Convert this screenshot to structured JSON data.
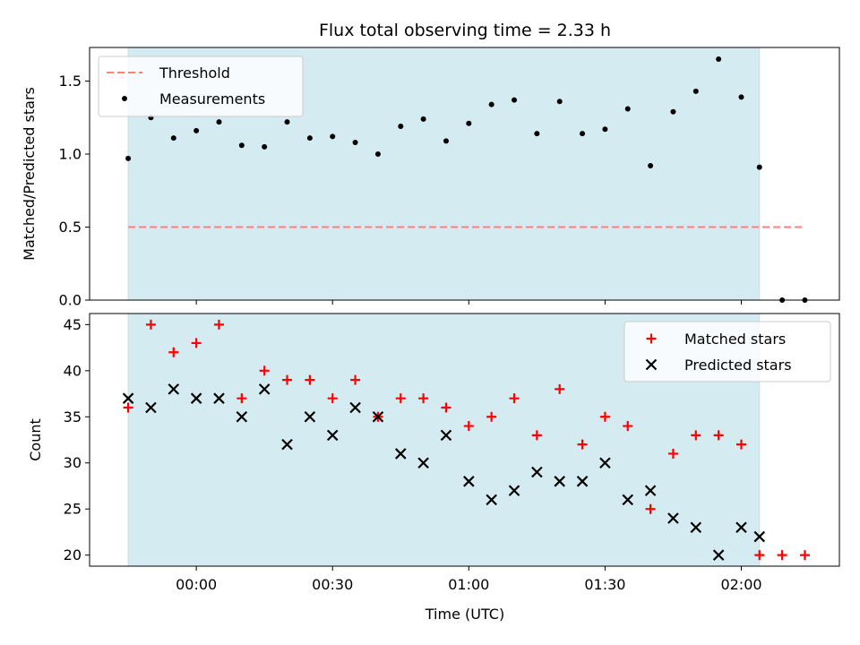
{
  "chart_data": [
    {
      "type": "scatter",
      "title": "Flux total observing time = 2.33 h",
      "xlabel": "",
      "ylabel": "Matched/Predicted stars",
      "ylim": [
        0,
        1.73
      ],
      "yticks": [
        "0.0",
        "0.5",
        "1.0",
        "1.5"
      ],
      "ytick_values": [
        0,
        0.5,
        1.0,
        1.5
      ],
      "shaded_span": [
        "23:45",
        "02:04"
      ],
      "legend_position": "top-left",
      "threshold": {
        "name": "Threshold",
        "y": 0.5,
        "x_start": "23:45",
        "x_end": "02:14",
        "color": "#ff7f7f"
      },
      "series": [
        {
          "name": "Measurements",
          "color": "#000000",
          "marker": "dot",
          "x": [
            "23:45",
            "23:50",
            "23:55",
            "00:00",
            "00:05",
            "00:10",
            "00:15",
            "00:20",
            "00:25",
            "00:30",
            "00:35",
            "00:40",
            "00:45",
            "00:50",
            "00:55",
            "01:00",
            "01:05",
            "01:10",
            "01:15",
            "01:20",
            "01:25",
            "01:30",
            "01:35",
            "01:40",
            "01:45",
            "01:50",
            "01:55",
            "02:00",
            "02:04",
            "02:09",
            "02:14"
          ],
          "y": [
            0.97,
            1.25,
            1.11,
            1.16,
            1.22,
            1.06,
            1.05,
            1.22,
            1.11,
            1.12,
            1.08,
            1.0,
            1.19,
            1.24,
            1.09,
            1.21,
            1.34,
            1.37,
            1.14,
            1.36,
            1.14,
            1.17,
            1.31,
            0.92,
            1.29,
            1.43,
            1.65,
            1.39,
            0.91,
            0.0,
            0.0
          ]
        }
      ]
    },
    {
      "type": "scatter",
      "title": "",
      "xlabel": "Time (UTC)",
      "ylabel": "Count",
      "ylim": [
        18.8,
        46.2
      ],
      "yticks": [
        "20",
        "25",
        "30",
        "35",
        "40",
        "45"
      ],
      "ytick_values": [
        20,
        25,
        30,
        35,
        40,
        45
      ],
      "xticks": [
        "00:00",
        "00:30",
        "01:00",
        "01:30",
        "02:00"
      ],
      "shaded_span": [
        "23:45",
        "02:04"
      ],
      "legend_position": "top-right",
      "series": [
        {
          "name": "Matched stars",
          "color": "#ff0000",
          "marker": "plus",
          "x": [
            "23:45",
            "23:50",
            "23:55",
            "00:00",
            "00:05",
            "00:10",
            "00:15",
            "00:20",
            "00:25",
            "00:30",
            "00:35",
            "00:40",
            "00:45",
            "00:50",
            "00:55",
            "01:00",
            "01:05",
            "01:10",
            "01:15",
            "01:20",
            "01:25",
            "01:30",
            "01:35",
            "01:40",
            "01:45",
            "01:50",
            "01:55",
            "02:00",
            "02:04",
            "02:09",
            "02:14"
          ],
          "y": [
            36,
            45,
            42,
            43,
            45,
            37,
            40,
            39,
            39,
            37,
            39,
            35,
            37,
            37,
            36,
            34,
            35,
            37,
            33,
            38,
            32,
            35,
            34,
            25,
            31,
            33,
            33,
            32,
            20,
            20,
            20
          ]
        },
        {
          "name": "Predicted stars",
          "color": "#000000",
          "marker": "x",
          "x": [
            "23:45",
            "23:50",
            "23:55",
            "00:00",
            "00:05",
            "00:10",
            "00:15",
            "00:20",
            "00:25",
            "00:30",
            "00:35",
            "00:40",
            "00:45",
            "00:50",
            "00:55",
            "01:00",
            "01:05",
            "01:10",
            "01:15",
            "01:20",
            "01:25",
            "01:30",
            "01:35",
            "01:40",
            "01:45",
            "01:50",
            "01:55",
            "02:00",
            "02:04"
          ],
          "y": [
            37,
            36,
            38,
            37,
            37,
            35,
            38,
            32,
            35,
            33,
            36,
            35,
            31,
            30,
            33,
            28,
            26,
            27,
            29,
            28,
            28,
            30,
            26,
            27,
            24,
            23,
            20,
            23,
            22
          ]
        }
      ]
    }
  ],
  "colors": {
    "shade": "#d4ebf2",
    "shade_edge": "#bfe0e8"
  }
}
